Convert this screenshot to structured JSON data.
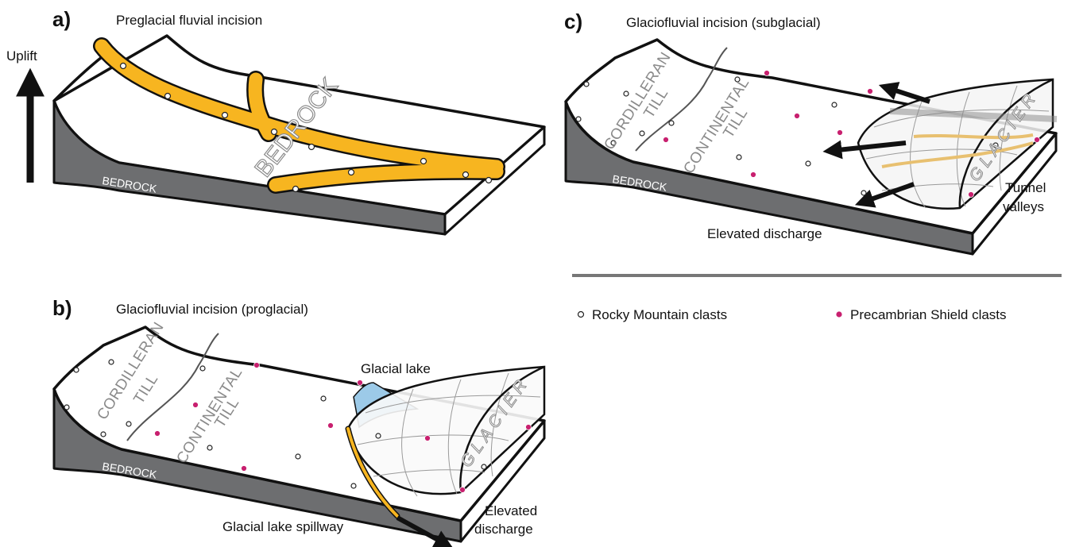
{
  "panel_a": {
    "label": "a)",
    "title": "Preglacial fluvial incision",
    "uplift": "Uplift",
    "bedrock_side": "BEDROCK",
    "bedrock_top": "BEDROCK"
  },
  "panel_b": {
    "label": "b)",
    "title": "Glaciofluvial incision (proglacial)",
    "cordilleran_till": [
      "CORDILLERAN",
      "TILL"
    ],
    "continental_till": [
      "CONTINENTAL",
      "TILL"
    ],
    "glacial_lake": "Glacial lake",
    "glacier": "GLACIER",
    "bedrock": "BEDROCK",
    "spillway": "Glacial lake spillway",
    "elevated_discharge": [
      "Elevated",
      "discharge"
    ]
  },
  "panel_c": {
    "label": "c)",
    "title": "Glaciofluvial incision (subglacial)",
    "cordilleran_till": [
      "CORDILLERAN",
      "TILL"
    ],
    "continental_till": [
      "CONTINENTAL",
      "TILL"
    ],
    "glacier": "GLACIER",
    "bedrock": "BEDROCK",
    "tunnel_valleys": [
      "Tunnel",
      "valleys"
    ],
    "elevated_discharge": "Elevated discharge"
  },
  "legend": {
    "rocky_mountain": "Rocky Mountain clasts",
    "precambrian": "Precambrian Shield clasts"
  }
}
